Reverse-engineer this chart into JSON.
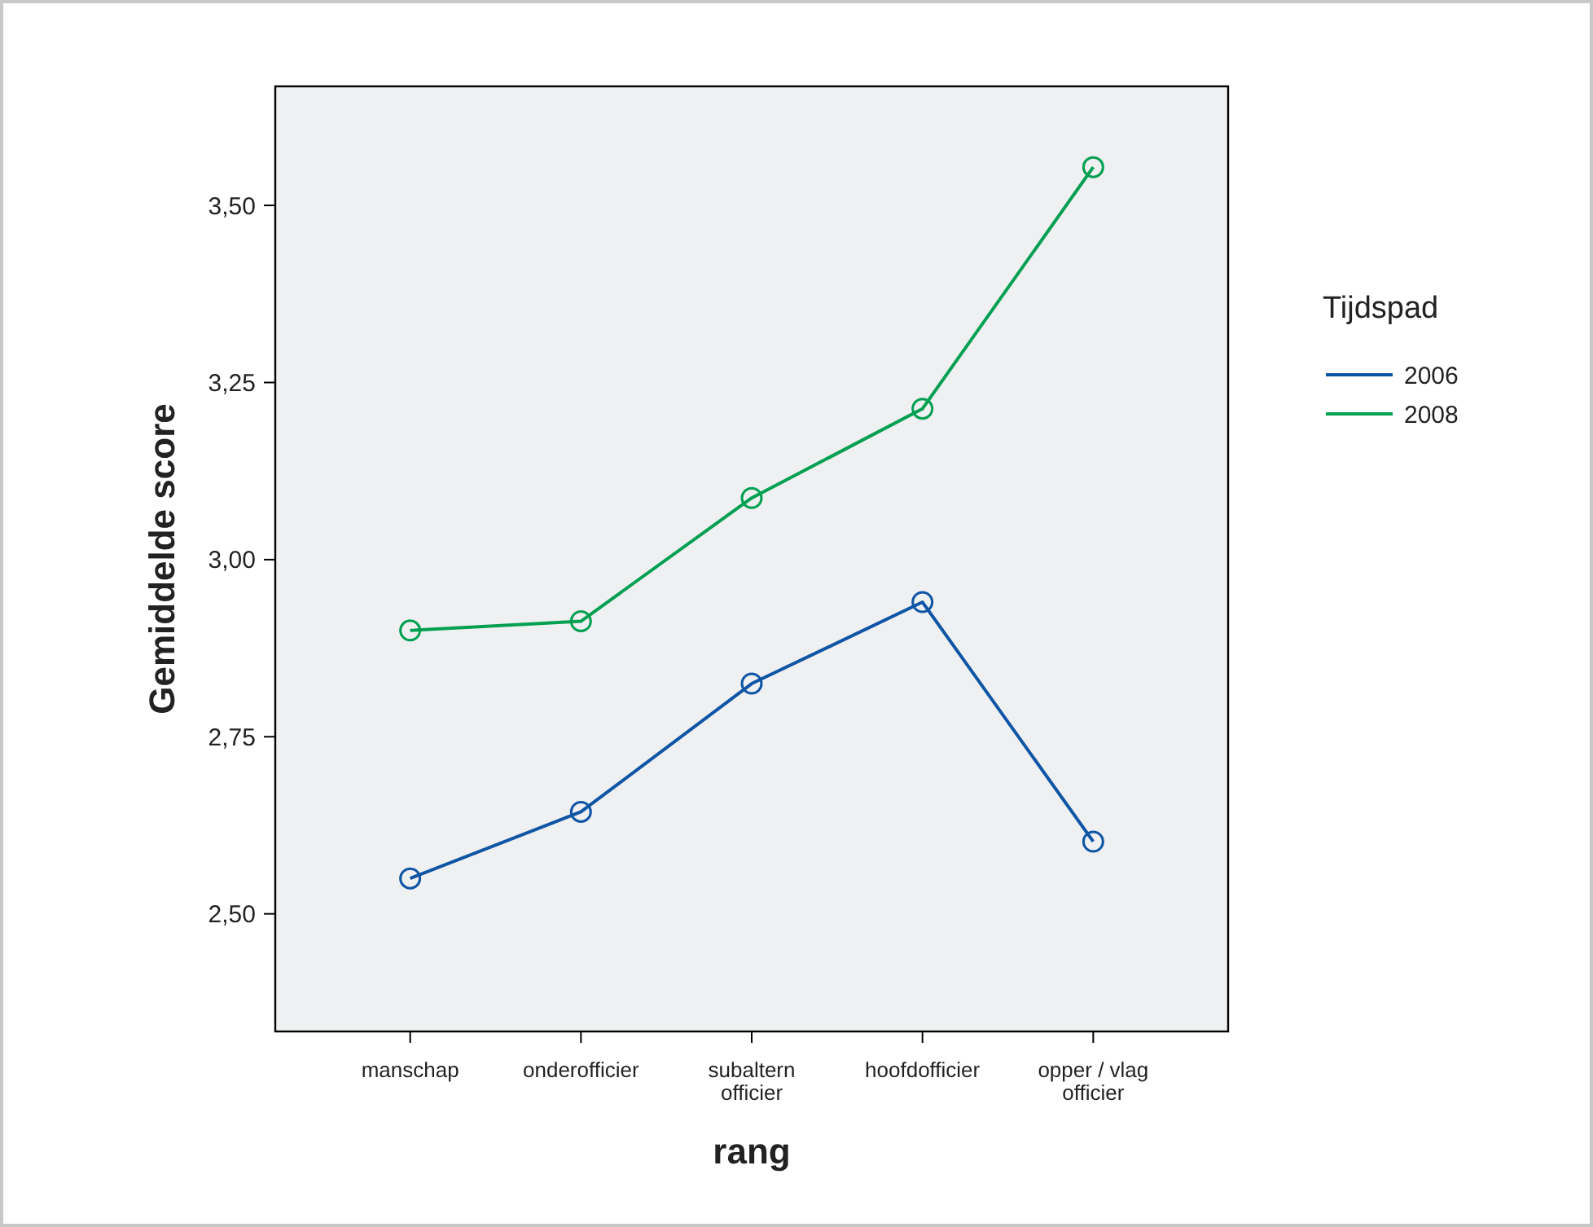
{
  "chart_data": {
    "type": "line",
    "xlabel": "rang",
    "ylabel": "Gemiddelde score",
    "legend_title": "Tijdspad",
    "categories": [
      "manschap",
      "onderofficier",
      "subaltern\nofficier",
      "hoofdofficier",
      "opper / vlag\nofficier"
    ],
    "series": [
      {
        "name": "2006",
        "color": "#0f55a5",
        "values": [
          2.55,
          2.644,
          2.825,
          2.94,
          2.602
        ]
      },
      {
        "name": "2008",
        "color": "#00a050",
        "values": [
          2.9,
          2.913,
          3.087,
          3.213,
          3.554
        ]
      }
    ],
    "ylim": [
      2.334,
      3.668
    ],
    "yticks": [
      {
        "value": 2.5,
        "label": "2,50"
      },
      {
        "value": 2.75,
        "label": "2,75"
      },
      {
        "value": 3.0,
        "label": "3,00"
      },
      {
        "value": 3.25,
        "label": "3,25"
      },
      {
        "value": 3.5,
        "label": "3,50"
      }
    ],
    "marker": "circle",
    "legend": "right",
    "grid": false
  }
}
